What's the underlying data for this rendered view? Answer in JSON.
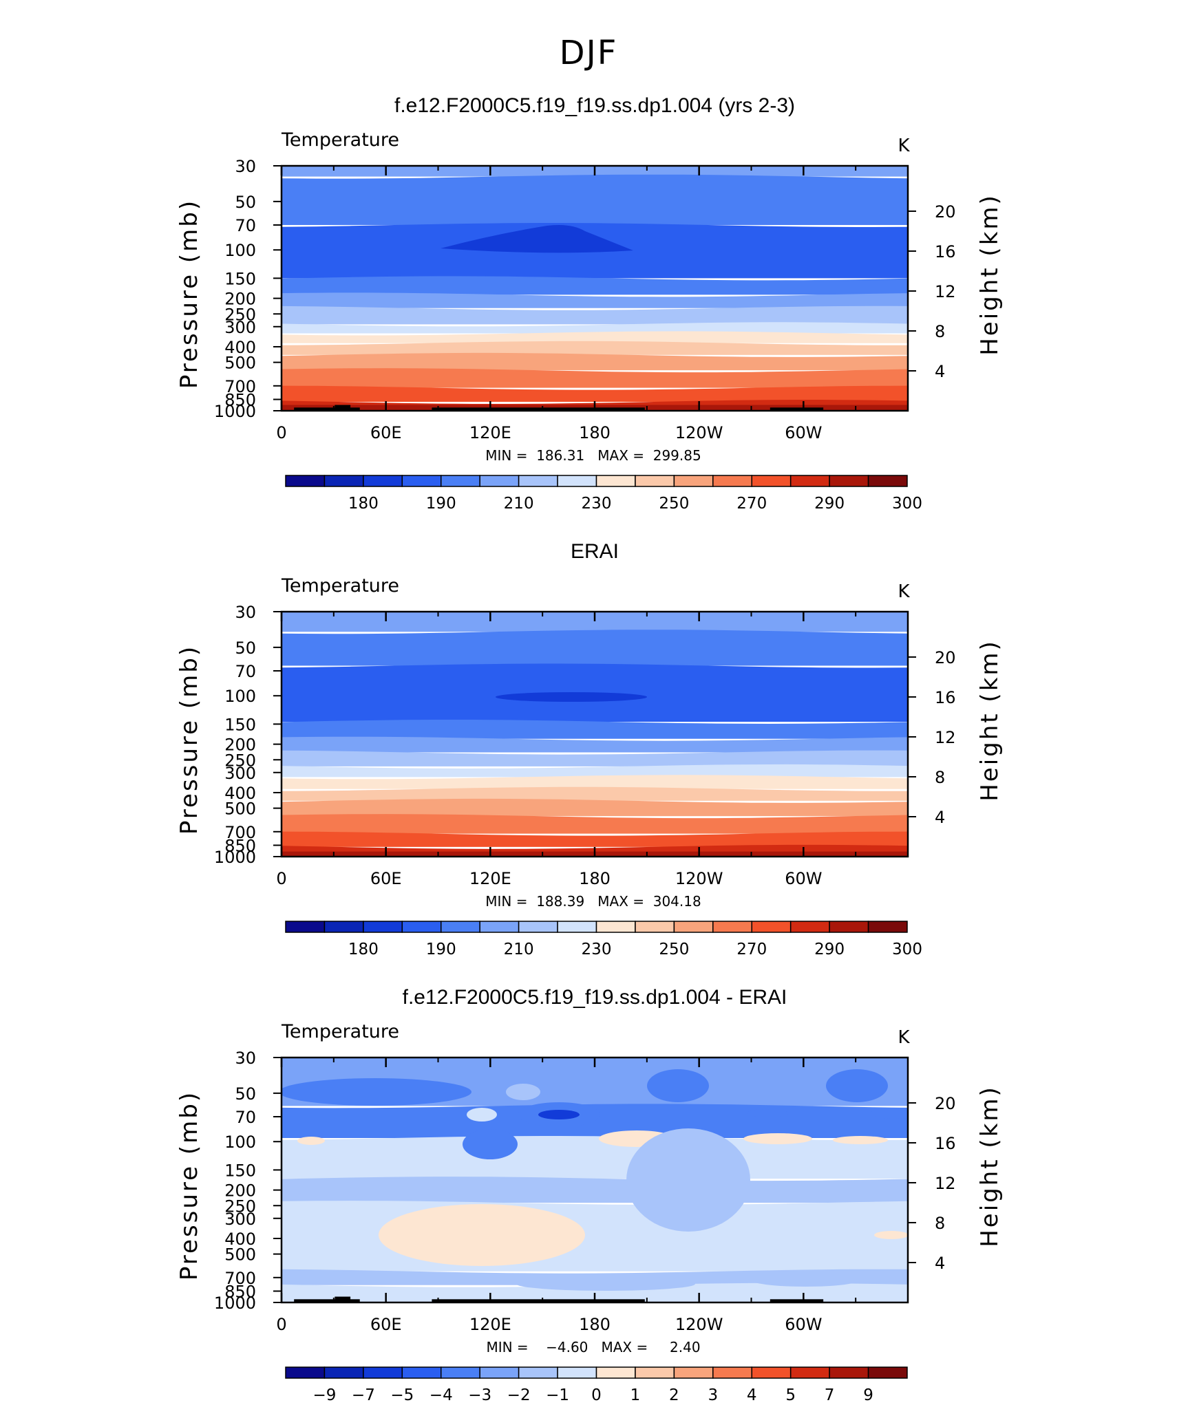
{
  "figure": {
    "title": "DJF"
  },
  "chart_data": [
    {
      "type": "heatmap",
      "name": "model",
      "title": "f.e12.F2000C5.f19_f19.ss.dp1.004 (yrs 2-3)",
      "left_label": "Temperature",
      "units": "K",
      "xlabel": "",
      "ylabel": "Pressure (mb)",
      "ylabel_right": "Height (km)",
      "pressure_ticks": [
        "30",
        "50",
        "70",
        "100",
        "150",
        "200",
        "250",
        "300",
        "400",
        "500",
        "700",
        "850",
        "1000"
      ],
      "height_ticks": [
        "20",
        "16",
        "12",
        "8",
        "4"
      ],
      "lon_ticks": [
        "0",
        "60E",
        "120E",
        "180",
        "120W",
        "60W"
      ],
      "stats_text": "MIN =  186.31   MAX =  299.85",
      "min": 186.31,
      "max": 299.85,
      "colorbar": {
        "levels": [
          "180",
          "190",
          "210",
          "230",
          "250",
          "270",
          "290",
          "300"
        ],
        "colors": [
          "#0a0a8c",
          "#0a25b5",
          "#123bd8",
          "#2a5ef0",
          "#4a7ff5",
          "#7aa3f8",
          "#a8c4fa",
          "#d2e3fc",
          "#fde6d2",
          "#fbc9aa",
          "#f8a47c",
          "#f67a4f",
          "#f2522a",
          "#d22b12",
          "#a9170a",
          "#7a0a0a"
        ]
      },
      "bands": [
        {
          "top": "30",
          "bottom": "35",
          "color": "#7aa3f8"
        },
        {
          "top": "35",
          "bottom": "70",
          "color": "#4a7ff5"
        },
        {
          "top": "70",
          "bottom": "150",
          "color": "#2a5ef0"
        },
        {
          "top": "150",
          "bottom": "190",
          "color": "#4a7ff5"
        },
        {
          "top": "190",
          "bottom": "230",
          "color": "#7aa3f8"
        },
        {
          "top": "230",
          "bottom": "290",
          "color": "#a8c4fa"
        },
        {
          "top": "290",
          "bottom": "330",
          "color": "#d2e3fc"
        },
        {
          "top": "330",
          "bottom": "380",
          "color": "#fde6d2"
        },
        {
          "top": "380",
          "bottom": "450",
          "color": "#fbc9aa"
        },
        {
          "top": "450",
          "bottom": "560",
          "color": "#f8a47c"
        },
        {
          "top": "560",
          "bottom": "720",
          "color": "#f67a4f"
        },
        {
          "top": "720",
          "bottom": "880",
          "color": "#f2522a"
        },
        {
          "top": "880",
          "bottom": "1000",
          "color": "#d22b12"
        }
      ]
    },
    {
      "type": "heatmap",
      "name": "erai",
      "title": "ERAI",
      "left_label": "Temperature",
      "units": "K",
      "xlabel": "",
      "ylabel": "Pressure (mb)",
      "ylabel_right": "Height (km)",
      "pressure_ticks": [
        "30",
        "50",
        "70",
        "100",
        "150",
        "200",
        "250",
        "300",
        "400",
        "500",
        "700",
        "850",
        "1000"
      ],
      "height_ticks": [
        "20",
        "16",
        "12",
        "8",
        "4"
      ],
      "lon_ticks": [
        "0",
        "60E",
        "120E",
        "180",
        "120W",
        "60W"
      ],
      "stats_text": "MIN =  188.39   MAX =  304.18",
      "min": 188.39,
      "max": 304.18,
      "colorbar": {
        "levels": [
          "180",
          "190",
          "210",
          "230",
          "250",
          "270",
          "290",
          "300"
        ],
        "colors": [
          "#0a0a8c",
          "#0a25b5",
          "#123bd8",
          "#2a5ef0",
          "#4a7ff5",
          "#7aa3f8",
          "#a8c4fa",
          "#d2e3fc",
          "#fde6d2",
          "#fbc9aa",
          "#f8a47c",
          "#f67a4f",
          "#f2522a",
          "#d22b12",
          "#a9170a",
          "#7a0a0a"
        ]
      },
      "bands": [
        {
          "top": "30",
          "bottom": "40",
          "color": "#7aa3f8"
        },
        {
          "top": "40",
          "bottom": "65",
          "color": "#4a7ff5"
        },
        {
          "top": "65",
          "bottom": "145",
          "color": "#2a5ef0"
        },
        {
          "top": "145",
          "bottom": "185",
          "color": "#4a7ff5"
        },
        {
          "top": "185",
          "bottom": "225",
          "color": "#7aa3f8"
        },
        {
          "top": "225",
          "bottom": "275",
          "color": "#a8c4fa"
        },
        {
          "top": "275",
          "bottom": "320",
          "color": "#d2e3fc"
        },
        {
          "top": "320",
          "bottom": "380",
          "color": "#fde6d2"
        },
        {
          "top": "380",
          "bottom": "450",
          "color": "#fbc9aa"
        },
        {
          "top": "450",
          "bottom": "560",
          "color": "#f8a47c"
        },
        {
          "top": "560",
          "bottom": "720",
          "color": "#f67a4f"
        },
        {
          "top": "720",
          "bottom": "870",
          "color": "#f2522a"
        },
        {
          "top": "870",
          "bottom": "1000",
          "color": "#d22b12"
        }
      ]
    },
    {
      "type": "heatmap",
      "name": "difference",
      "title": "f.e12.F2000C5.f19_f19.ss.dp1.004 - ERAI",
      "left_label": "Temperature",
      "units": "K",
      "xlabel": "",
      "ylabel": "Pressure (mb)",
      "ylabel_right": "Height (km)",
      "pressure_ticks": [
        "30",
        "50",
        "70",
        "100",
        "150",
        "200",
        "250",
        "300",
        "400",
        "500",
        "700",
        "850",
        "1000"
      ],
      "height_ticks": [
        "20",
        "16",
        "12",
        "8",
        "4"
      ],
      "lon_ticks": [
        "0",
        "60E",
        "120E",
        "180",
        "120W",
        "60W"
      ],
      "stats_text": "MIN =    −4.60   MAX =     2.40",
      "min": -4.6,
      "max": 2.4,
      "colorbar": {
        "levels": [
          "−9",
          "−7",
          "−5",
          "−4",
          "−3",
          "−2",
          "−1",
          "0",
          "1",
          "2",
          "3",
          "4",
          "5",
          "7",
          "9"
        ],
        "colors": [
          "#0a0a8c",
          "#0a25b5",
          "#123bd8",
          "#2a5ef0",
          "#4a7ff5",
          "#7aa3f8",
          "#a8c4fa",
          "#d2e3fc",
          "#fde6d2",
          "#fbc9aa",
          "#f8a47c",
          "#f67a4f",
          "#f2522a",
          "#d22b12",
          "#a9170a",
          "#7a0a0a"
        ]
      },
      "bands": [
        {
          "top": "30",
          "bottom": "60",
          "color": "#7aa3f8"
        },
        {
          "top": "60",
          "bottom": "95",
          "color": "#4a7ff5"
        },
        {
          "top": "95",
          "bottom": "170",
          "color": "#d2e3fc"
        },
        {
          "top": "170",
          "bottom": "240",
          "color": "#a8c4fa"
        },
        {
          "top": "240",
          "bottom": "640",
          "color": "#d2e3fc"
        },
        {
          "top": "640",
          "bottom": "780",
          "color": "#a8c4fa"
        },
        {
          "top": "780",
          "bottom": "1000",
          "color": "#d2e3fc"
        }
      ]
    }
  ]
}
